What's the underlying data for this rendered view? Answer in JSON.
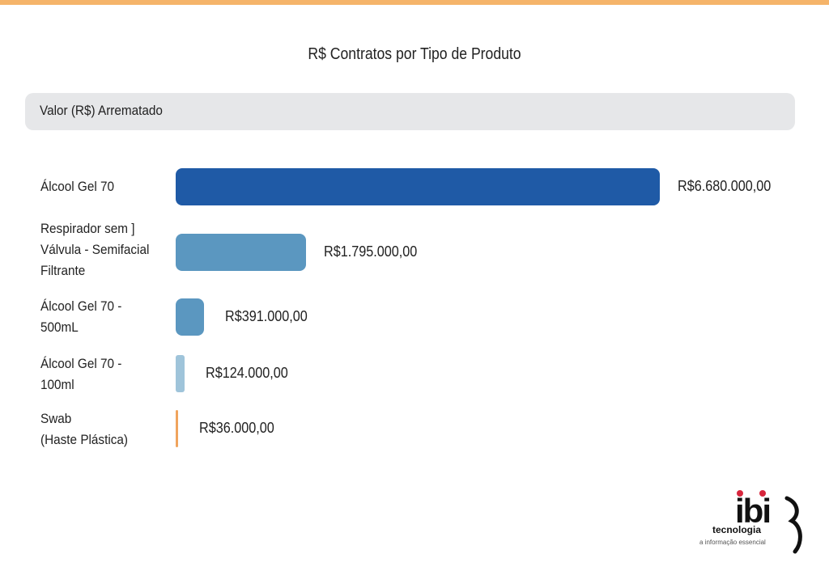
{
  "chart_data": {
    "type": "bar",
    "orientation": "horizontal",
    "title": "R$ Contratos por Tipo de Produto",
    "series_header": "Valor (R$) Arrematado",
    "categories": [
      "Álcool Gel 70",
      "Respirador sem ]\nVálvula - Semifacial\nFiltrante",
      "Álcool Gel 70 -\n500mL",
      "Álcool Gel 70 -\n100ml",
      "Swab\n(Haste Plástica)"
    ],
    "values": [
      6680000,
      1795000,
      391000,
      124000,
      36000
    ],
    "value_labels": [
      "R$6.680.000,00",
      "R$1.795.000,00",
      "R$391.000,00",
      "R$124.000,00",
      "R$36.000,00"
    ],
    "bar_colors": [
      "#1f5aa6",
      "#5b97c0",
      "#5b97c0",
      "#9fc4da",
      "#f0a45d"
    ],
    "grid": false
  },
  "colors": {
    "accent": "#f5b46a",
    "header_bg": "#e6e7e9"
  },
  "logo": {
    "brand": "ibi",
    "subtitle": "tecnologia",
    "tagline": "a informação essencial"
  }
}
